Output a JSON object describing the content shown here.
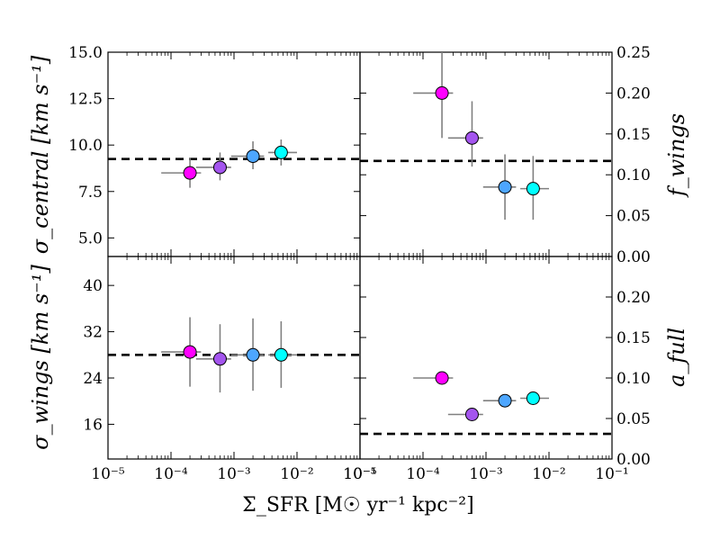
{
  "chart_data": {
    "type": "scatter",
    "xlabel": "Σ_SFR [M☉ yr⁻¹ kpc⁻²]",
    "x_axis": {
      "scale": "log",
      "xlim": [
        1e-05,
        0.1
      ],
      "left_ticks": [
        "10⁻⁵",
        "10⁻⁴",
        "10⁻³",
        "10⁻²",
        "10⁻¹"
      ],
      "right_ticks": [
        "10⁻⁵",
        "10⁻⁴",
        "10⁻³",
        "10⁻²",
        "10⁻¹"
      ]
    },
    "marker_colors": [
      "#ff00ff",
      "#a455ee",
      "#4da6ff",
      "#00ffff"
    ],
    "panels": [
      {
        "id": "sigma_central",
        "ylabel": "σ_central [km s⁻¹]",
        "ylim": [
          4.0,
          15.0
        ],
        "yticks": [
          5.0,
          7.5,
          10.0,
          12.5,
          15.0
        ],
        "ytick_labels": [
          "5.0",
          "7.5",
          "10.0",
          "12.5",
          "15.0"
        ],
        "reference_line": 9.25,
        "points": [
          {
            "x": 0.0002,
            "y": 8.5,
            "xerr": [
              7e-05,
              0.0003
            ],
            "yerr": [
              7.7,
              9.3
            ]
          },
          {
            "x": 0.0006,
            "y": 8.8,
            "xerr": [
              0.00025,
              0.0009
            ],
            "yerr": [
              8.1,
              9.6
            ]
          },
          {
            "x": 0.002,
            "y": 9.4,
            "xerr": [
              0.0009,
              0.003
            ],
            "yerr": [
              8.7,
              10.2
            ]
          },
          {
            "x": 0.0056,
            "y": 9.6,
            "xerr": [
              0.0035,
              0.01
            ],
            "yerr": [
              8.9,
              10.3
            ]
          }
        ]
      },
      {
        "id": "f_wings",
        "ylabel": "f_wings",
        "ylim": [
          0.0,
          0.25
        ],
        "yticks": [
          0.0,
          0.05,
          0.1,
          0.15,
          0.2,
          0.25
        ],
        "ytick_labels": [
          "0.00",
          "0.05",
          "0.10",
          "0.15",
          "0.20",
          "0.25"
        ],
        "reference_line": 0.117,
        "points": [
          {
            "x": 0.0002,
            "y": 0.2,
            "xerr": [
              7e-05,
              0.0003
            ],
            "yerr": [
              0.145,
              0.255
            ]
          },
          {
            "x": 0.0006,
            "y": 0.145,
            "xerr": [
              0.00025,
              0.0009
            ],
            "yerr": [
              0.11,
              0.19
            ]
          },
          {
            "x": 0.002,
            "y": 0.085,
            "xerr": [
              0.0009,
              0.003
            ],
            "yerr": [
              0.045,
              0.125
            ]
          },
          {
            "x": 0.0056,
            "y": 0.083,
            "xerr": [
              0.0035,
              0.01
            ],
            "yerr": [
              0.045,
              0.123
            ]
          }
        ]
      },
      {
        "id": "sigma_wings",
        "ylabel": "σ_wings [km s⁻¹]",
        "ylim": [
          10.0,
          45.0
        ],
        "yticks": [
          16,
          24,
          32,
          40
        ],
        "ytick_labels": [
          "16",
          "24",
          "32",
          "40"
        ],
        "reference_line": 28.0,
        "points": [
          {
            "x": 0.0002,
            "y": 28.5,
            "xerr": [
              7e-05,
              0.0003
            ],
            "yerr": [
              22.5,
              34.5
            ]
          },
          {
            "x": 0.0006,
            "y": 27.3,
            "xerr": [
              0.00025,
              0.0009
            ],
            "yerr": [
              21.5,
              33.3
            ]
          },
          {
            "x": 0.002,
            "y": 28.0,
            "xerr": [
              0.0009,
              0.003
            ],
            "yerr": [
              21.8,
              34.3
            ]
          },
          {
            "x": 0.0056,
            "y": 28.0,
            "xerr": [
              0.0035,
              0.01
            ],
            "yerr": [
              22.3,
              33.8
            ]
          }
        ]
      },
      {
        "id": "a_full",
        "ylabel": "a_full",
        "ylim": [
          0.0,
          0.25
        ],
        "yticks": [
          0.0,
          0.05,
          0.1,
          0.15,
          0.2
        ],
        "ytick_labels": [
          "0.00",
          "0.05",
          "0.10",
          "0.15",
          "0.20"
        ],
        "reference_line": 0.031,
        "points": [
          {
            "x": 0.0002,
            "y": 0.1,
            "xerr": [
              7e-05,
              0.0003
            ]
          },
          {
            "x": 0.0006,
            "y": 0.055,
            "xerr": [
              0.00025,
              0.0009
            ]
          },
          {
            "x": 0.002,
            "y": 0.072,
            "xerr": [
              0.0009,
              0.003
            ]
          },
          {
            "x": 0.0056,
            "y": 0.075,
            "xerr": [
              0.0035,
              0.01
            ]
          }
        ]
      }
    ]
  }
}
